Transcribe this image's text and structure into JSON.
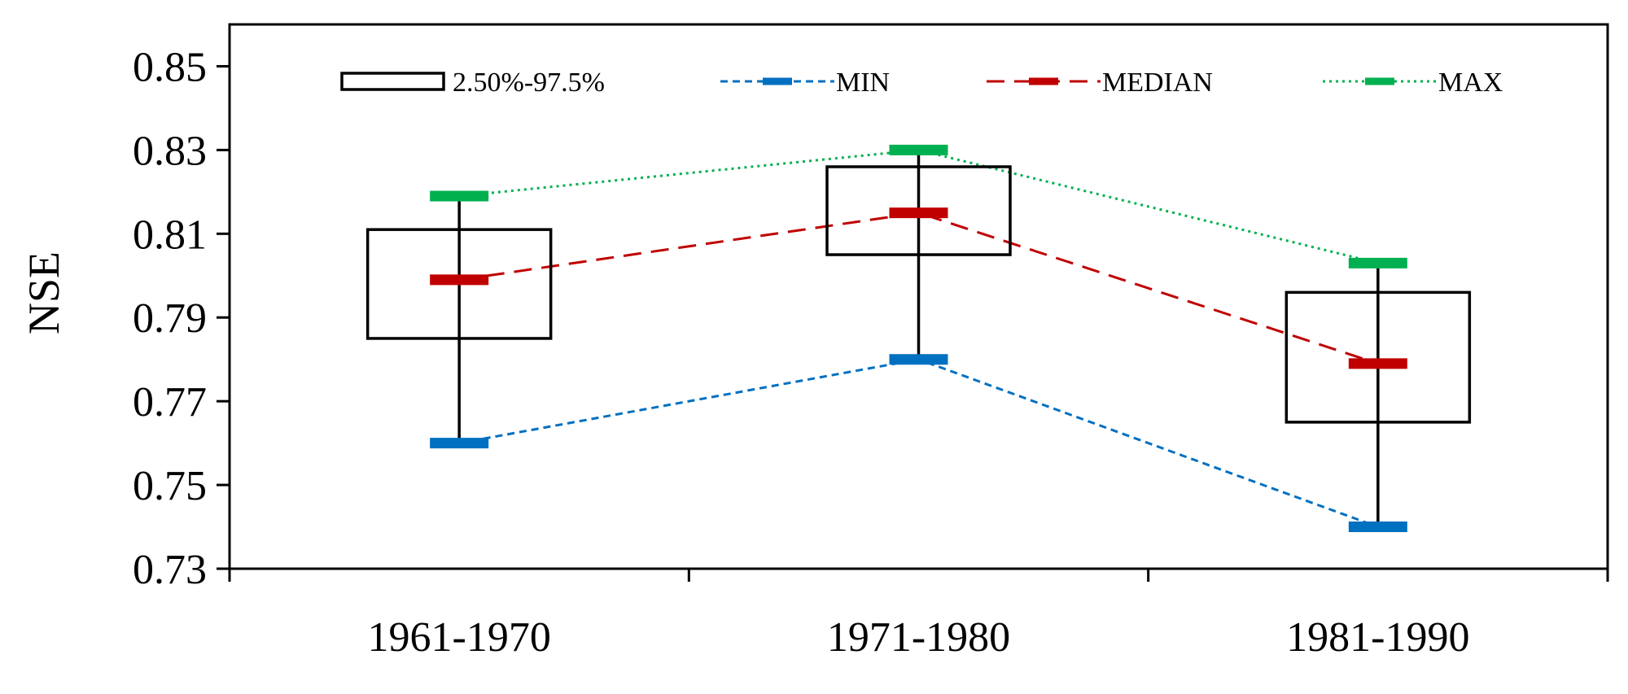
{
  "chart_data": {
    "type": "box",
    "ylabel": "NSE",
    "xlabel": "",
    "ylim": [
      0.73,
      0.86
    ],
    "yticks": [
      "0.73",
      "0.75",
      "0.77",
      "0.79",
      "0.81",
      "0.83",
      "0.85"
    ],
    "categories": [
      "1961-1970",
      "1971-1980",
      "1981-1990"
    ],
    "band": {
      "name": "2.50%-97.5%",
      "low": [
        0.785,
        0.805,
        0.765
      ],
      "high": [
        0.811,
        0.826,
        0.796
      ]
    },
    "series": [
      {
        "name": "MIN",
        "values": [
          0.76,
          0.78,
          0.74
        ],
        "color": "#0070c0",
        "style": "short-dash"
      },
      {
        "name": "MEDIAN",
        "values": [
          0.799,
          0.815,
          0.779
        ],
        "color": "#c00000",
        "style": "long-dash"
      },
      {
        "name": "MAX",
        "values": [
          0.819,
          0.83,
          0.803
        ],
        "color": "#00b050",
        "style": "dotted"
      }
    ],
    "grid": false,
    "legend_position": "top"
  }
}
